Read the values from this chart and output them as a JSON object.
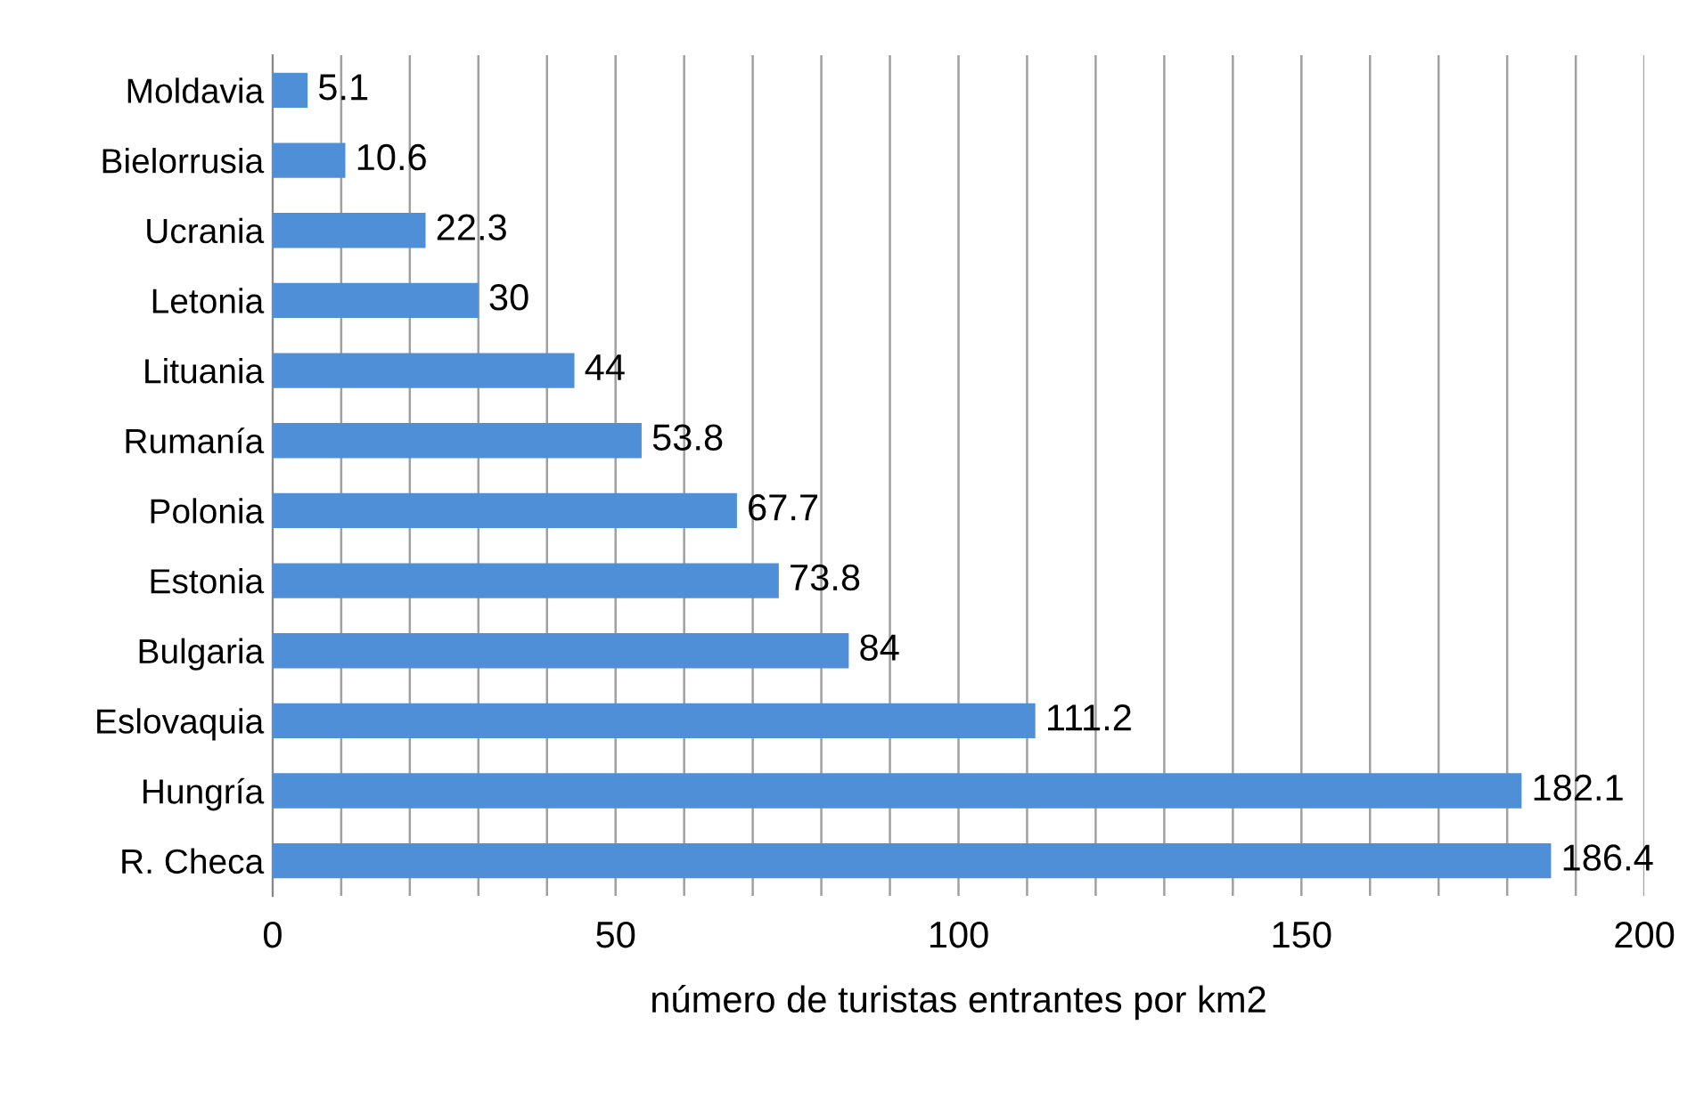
{
  "chart_data": {
    "type": "bar",
    "orientation": "horizontal",
    "xlabel": "número de turistas entrantes por km2",
    "categories": [
      "Moldavia",
      "Bielorrusia",
      "Ucrania",
      "Letonia",
      "Lituania",
      "Rumanía",
      "Polonia",
      "Estonia",
      "Bulgaria",
      "Eslovaquia",
      "Hungría",
      "R. Checa"
    ],
    "values": [
      5.1,
      10.6,
      22.3,
      30,
      44,
      53.8,
      67.7,
      73.8,
      84,
      111.2,
      182.1,
      186.4
    ],
    "color": "#4f8fd8",
    "xlim": [
      0,
      200
    ],
    "xticks": [
      0,
      {
        "value": 10,
        "label": null
      },
      {
        "value": 20,
        "label": null
      },
      {
        "value": 30,
        "label": null
      },
      {
        "value": 40,
        "label": null
      },
      50,
      {
        "value": 60,
        "label": null
      },
      {
        "value": 70,
        "label": null
      },
      {
        "value": 80,
        "label": null
      },
      {
        "value": 90,
        "label": null
      },
      100,
      {
        "value": 110,
        "label": null
      },
      {
        "value": 120,
        "label": null
      },
      {
        "value": 130,
        "label": null
      },
      {
        "value": 140,
        "label": null
      },
      150,
      {
        "value": 160,
        "label": null
      },
      {
        "value": 170,
        "label": null
      },
      {
        "value": 180,
        "label": null
      },
      {
        "value": 190,
        "label": null
      },
      200
    ],
    "grid": "x",
    "data_labels": true,
    "legend": false
  }
}
